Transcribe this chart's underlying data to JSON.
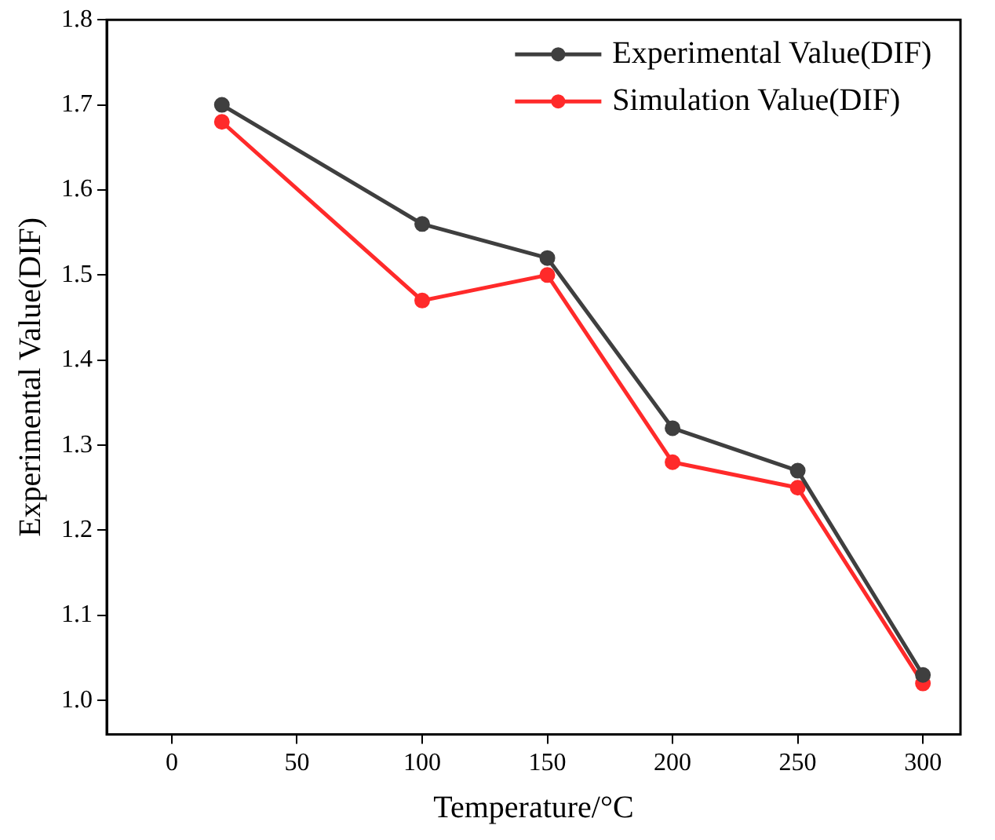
{
  "chart_data": {
    "type": "line",
    "xlabel": "Temperature/°C",
    "ylabel": "Experimental Value(DIF)",
    "x": [
      20,
      100,
      150,
      200,
      250,
      300
    ],
    "series": [
      {
        "name": "Experimental Value(DIF)",
        "color": "#3f3f3f",
        "values": [
          1.7,
          1.56,
          1.52,
          1.32,
          1.27,
          1.03
        ]
      },
      {
        "name": "Simulation Value(DIF)",
        "color": "#ff2a2a",
        "values": [
          1.68,
          1.47,
          1.5,
          1.28,
          1.25,
          1.02
        ]
      }
    ],
    "xlim": [
      -26,
      315
    ],
    "xticks": [
      0,
      50,
      100,
      150,
      200,
      250,
      300
    ],
    "ylim": [
      0.96,
      1.8
    ],
    "yticks": [
      {
        "value": 1,
        "label": "1.0"
      },
      {
        "value": 1.1,
        "label": "1.1"
      },
      {
        "value": 1.2,
        "label": "1.2"
      },
      {
        "value": 1.3,
        "label": "1.3"
      },
      {
        "value": 1.4,
        "label": "1.4"
      },
      {
        "value": 1.5,
        "label": "1.5"
      },
      {
        "value": 1.6,
        "label": "1.6"
      },
      {
        "value": 1.7,
        "label": "1.7"
      },
      {
        "value": 1.8,
        "label": "1.8"
      }
    ],
    "grid": false,
    "legend": "top right",
    "marker": "circle",
    "line_style": "solid"
  }
}
